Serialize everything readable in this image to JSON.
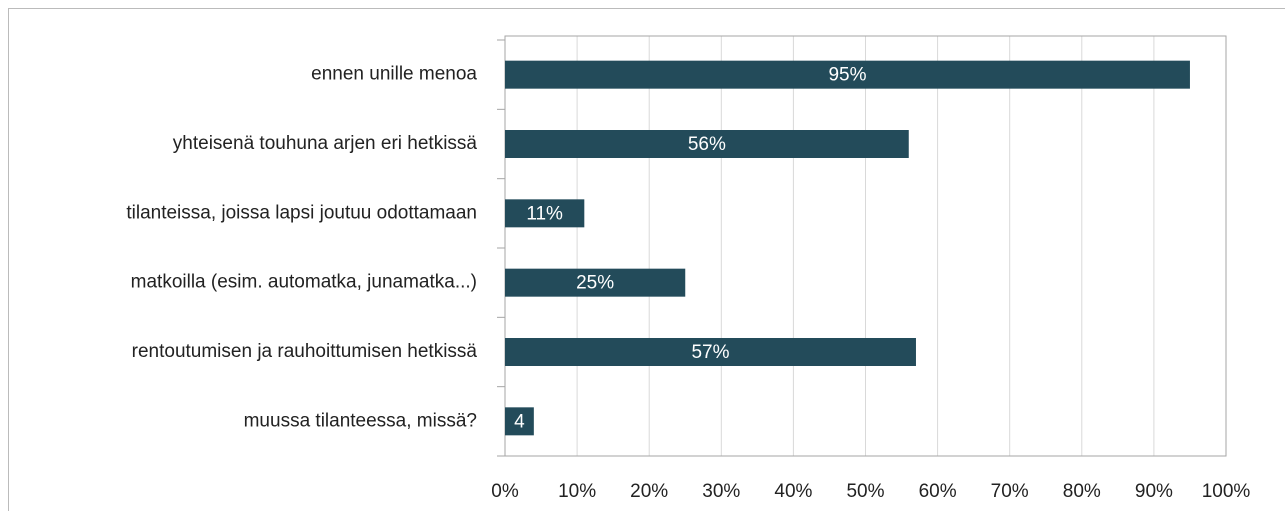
{
  "chart_data": {
    "type": "hbar",
    "categories": [
      "ennen unille menoa",
      "yhteisenä touhuna arjen eri hetkissä",
      "tilanteissa, joissa lapsi joutuu odottamaan",
      "matkoilla (esim. automatka, junamatka...)",
      "rentoutumisen ja rauhoittumisen hetkissä",
      "muussa tilanteessa, missä?"
    ],
    "values": [
      95,
      56,
      11,
      25,
      57,
      4
    ],
    "value_labels": [
      "95%",
      "56%",
      "11%",
      "25%",
      "57%",
      "4"
    ],
    "color": "#234b5a",
    "xlim": [
      0,
      100
    ],
    "xticks": [
      {
        "value": 0,
        "label": "0%"
      },
      {
        "value": 10,
        "label": "10%"
      },
      {
        "value": 20,
        "label": "20%"
      },
      {
        "value": 30,
        "label": "30%"
      },
      {
        "value": 40,
        "label": "40%"
      },
      {
        "value": 50,
        "label": "50%"
      },
      {
        "value": 60,
        "label": "60%"
      },
      {
        "value": 70,
        "label": "70%"
      },
      {
        "value": 80,
        "label": "80%"
      },
      {
        "value": 90,
        "label": "90%"
      },
      {
        "value": 100,
        "label": "100%"
      }
    ],
    "grid": true
  }
}
